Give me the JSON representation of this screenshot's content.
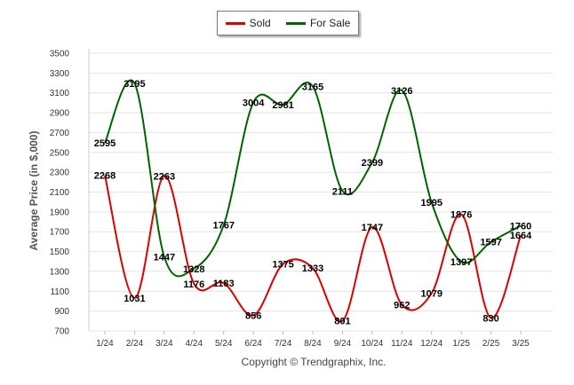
{
  "chart_data": {
    "type": "line",
    "categories": [
      "1/24",
      "2/24",
      "3/24",
      "4/24",
      "5/24",
      "6/24",
      "7/24",
      "8/24",
      "9/24",
      "10/24",
      "11/24",
      "12/24",
      "1/25",
      "2/25",
      "3/25"
    ],
    "series": [
      {
        "name": "Sold",
        "color": "#dd0000",
        "values": [
          2268,
          1031,
          2263,
          1176,
          1183,
          856,
          1375,
          1333,
          801,
          1747,
          962,
          1079,
          1876,
          830,
          1664
        ]
      },
      {
        "name": "For Sale",
        "color": "#006400",
        "values": [
          2595,
          3195,
          1447,
          1328,
          1767,
          3004,
          2981,
          3165,
          2111,
          2399,
          3126,
          1995,
          1397,
          1597,
          1760
        ]
      }
    ],
    "title": "",
    "xlabel": "",
    "ylabel": "Average Price (in $,000)",
    "ylim": [
      700,
      3500
    ],
    "yticks": [
      700,
      900,
      1100,
      1300,
      1500,
      1700,
      1900,
      2100,
      2300,
      2500,
      2700,
      2900,
      3100,
      3300,
      3500
    ],
    "grid": true,
    "legend_position": "top-center",
    "footer": "Copyright © Trendgraphix, Inc."
  }
}
